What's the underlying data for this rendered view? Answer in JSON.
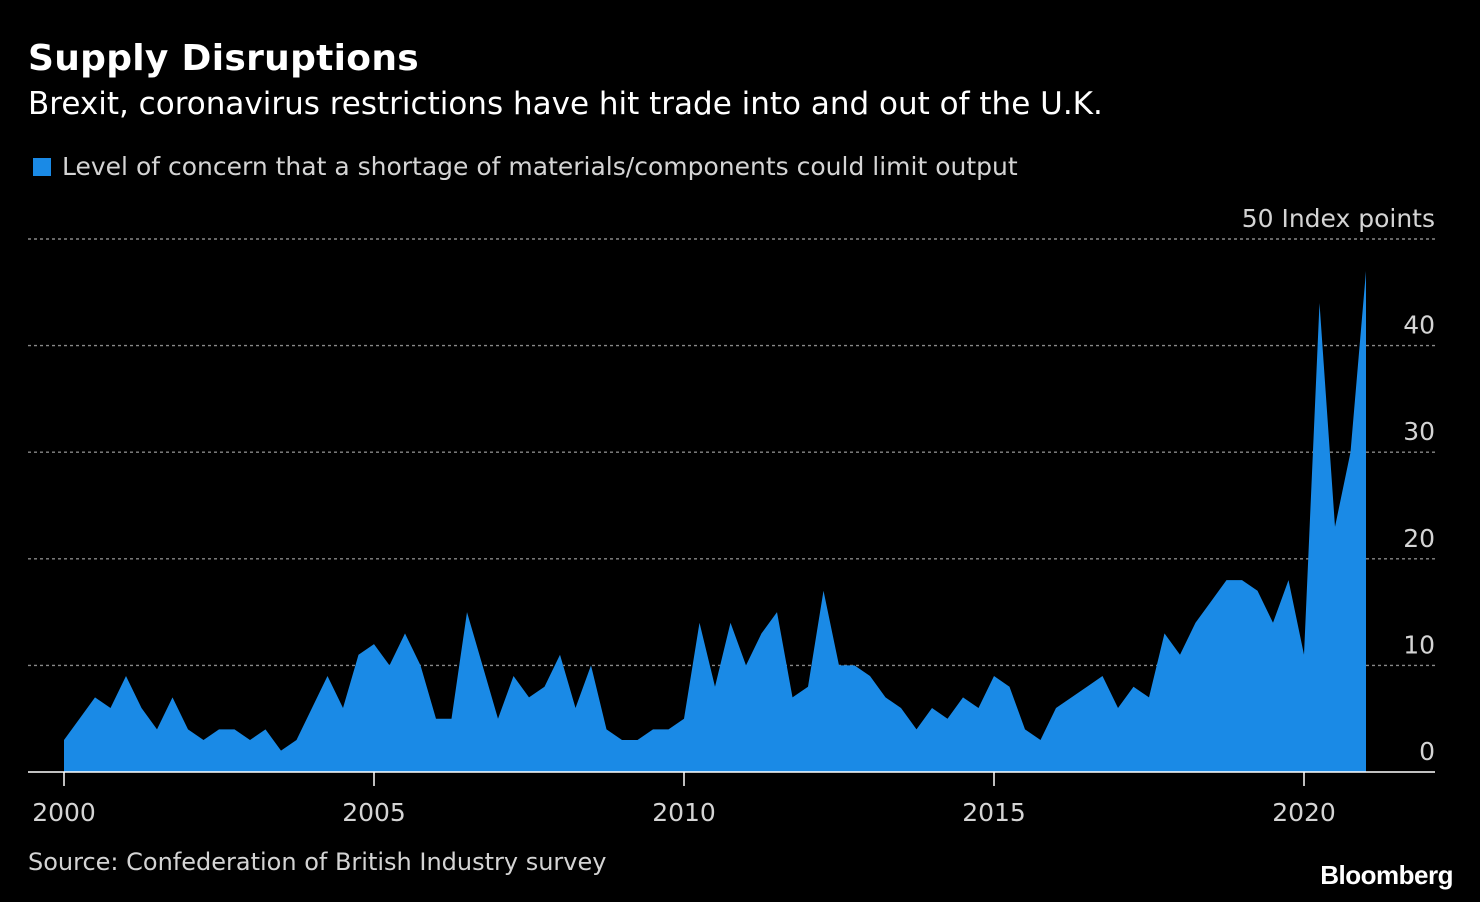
{
  "header": {
    "title": "Supply Disruptions",
    "subtitle": "Brexit, coronavirus restrictions have hit trade into and out of the U.K."
  },
  "legend": {
    "label": "Level of concern that a shortage of materials/components could limit output"
  },
  "footer": {
    "source": "Source: Confederation of British Industry survey",
    "brand": "Bloomberg"
  },
  "colors": {
    "background": "#000000",
    "series": "#1a8ae6",
    "gridline": "#888888",
    "axis": "#ffffff"
  },
  "chart_data": {
    "type": "area",
    "title": "Supply Disruptions",
    "subtitle": "Brexit, coronavirus restrictions have hit trade into and out of the U.K.",
    "ylabel": "Index points",
    "ylim": [
      0,
      50
    ],
    "xlim": [
      2000,
      2021.75
    ],
    "grid": true,
    "legend_position": "top-left",
    "y_axis_side": "right",
    "x_ticks": [
      "2000",
      "2005",
      "2010",
      "2015",
      "2020"
    ],
    "y_ticks": [
      {
        "value": 0,
        "label": "0"
      },
      {
        "value": 10,
        "label": "10"
      },
      {
        "value": 20,
        "label": "20"
      },
      {
        "value": 30,
        "label": "30"
      },
      {
        "value": 40,
        "label": "40"
      },
      {
        "value": 50,
        "label": "50  Index points"
      }
    ],
    "series": [
      {
        "name": "Level of concern that a shortage of materials/components could limit output",
        "x": [
          2000,
          2000.25,
          2000.5,
          2000.75,
          2001,
          2001.25,
          2001.5,
          2001.75,
          2002,
          2002.25,
          2002.5,
          2002.75,
          2003,
          2003.25,
          2003.5,
          2003.75,
          2004,
          2004.25,
          2004.5,
          2004.75,
          2005,
          2005.25,
          2005.5,
          2005.75,
          2006,
          2006.25,
          2006.5,
          2006.75,
          2007,
          2007.25,
          2007.5,
          2007.75,
          2008,
          2008.25,
          2008.5,
          2008.75,
          2009,
          2009.25,
          2009.5,
          2009.75,
          2010,
          2010.25,
          2010.5,
          2010.75,
          2011,
          2011.25,
          2011.5,
          2011.75,
          2012,
          2012.25,
          2012.5,
          2012.75,
          2013,
          2013.25,
          2013.5,
          2013.75,
          2014,
          2014.25,
          2014.5,
          2014.75,
          2015,
          2015.25,
          2015.5,
          2015.75,
          2016,
          2016.25,
          2016.5,
          2016.75,
          2017,
          2017.25,
          2017.5,
          2017.75,
          2018,
          2018.25,
          2018.5,
          2018.75,
          2019,
          2019.25,
          2019.5,
          2019.75,
          2020,
          2020.25,
          2020.5,
          2020.75,
          2021
        ],
        "values": [
          3,
          5,
          7,
          6,
          9,
          6,
          4,
          7,
          4,
          3,
          4,
          4,
          3,
          4,
          2,
          3,
          6,
          9,
          6,
          11,
          12,
          10,
          13,
          10,
          5,
          5,
          15,
          10,
          5,
          9,
          7,
          8,
          11,
          6,
          10,
          4,
          3,
          3,
          4,
          4,
          5,
          14,
          8,
          14,
          10,
          13,
          15,
          7,
          8,
          17,
          10,
          10,
          9,
          7,
          6,
          4,
          6,
          5,
          7,
          6,
          9,
          8,
          4,
          3,
          6,
          7,
          8,
          9,
          6,
          8,
          7,
          13,
          11,
          14,
          16,
          18,
          18,
          17,
          14,
          18,
          11,
          44,
          23,
          30,
          47
        ]
      }
    ]
  }
}
